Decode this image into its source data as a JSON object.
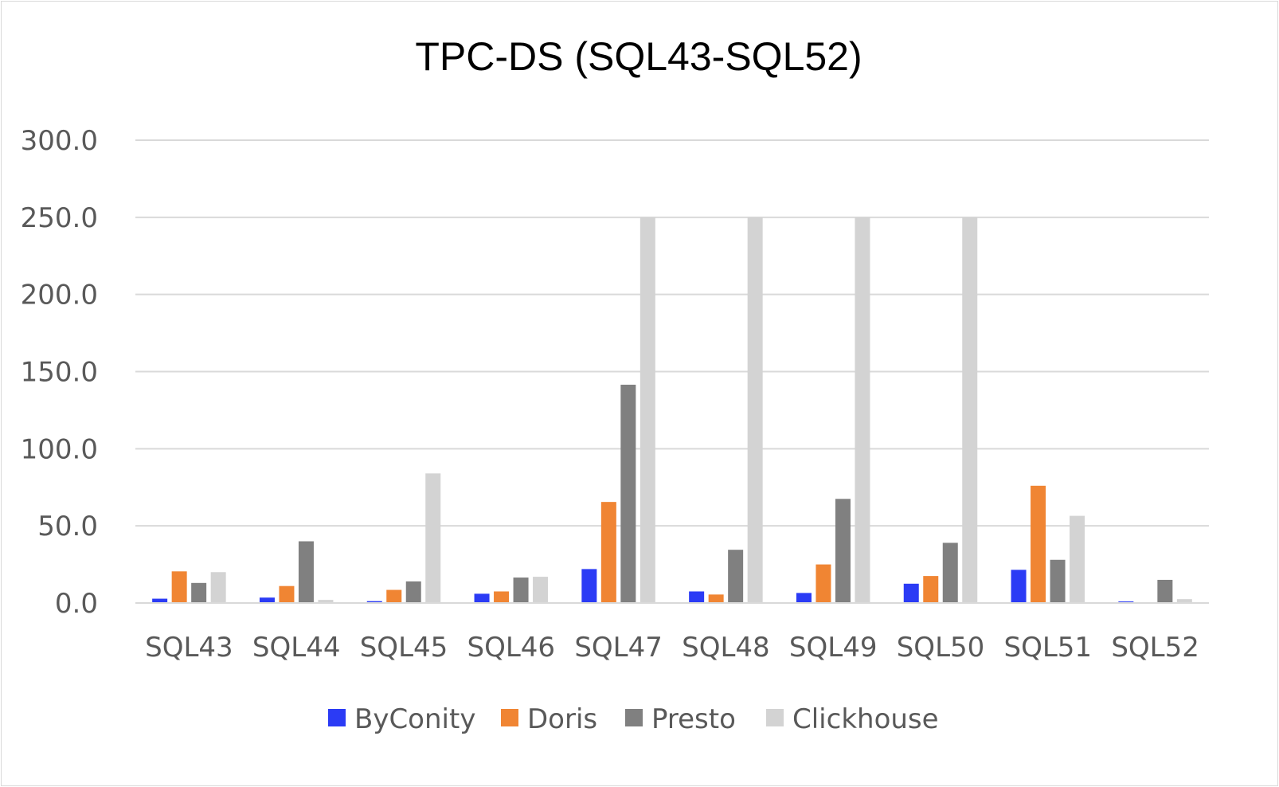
{
  "chart_data": {
    "type": "bar",
    "title": "TPC-DS (SQL43-SQL52)",
    "xlabel": "",
    "ylabel": "",
    "ylim": [
      0,
      300
    ],
    "y_ticks": [
      "0.0",
      "50.0",
      "100.0",
      "150.0",
      "200.0",
      "250.0",
      "300.0"
    ],
    "grid": true,
    "legend_position": "bottom",
    "categories": [
      "SQL43",
      "SQL44",
      "SQL45",
      "SQL46",
      "SQL47",
      "SQL48",
      "SQL49",
      "SQL50",
      "SQL51",
      "SQL52"
    ],
    "series": [
      {
        "name": "ByConity",
        "color": "#2b3bf5",
        "values": [
          2.8,
          3.5,
          1.2,
          6.0,
          22.0,
          7.5,
          6.5,
          12.5,
          21.5,
          1.0
        ]
      },
      {
        "name": "Doris",
        "color": "#f08533",
        "values": [
          20.5,
          11.0,
          8.5,
          7.5,
          65.5,
          5.5,
          25.0,
          17.5,
          76.0,
          0.5
        ]
      },
      {
        "name": "Presto",
        "color": "#808080",
        "values": [
          13.0,
          40.0,
          14.0,
          16.5,
          141.5,
          34.5,
          67.5,
          39.0,
          28.0,
          15.0
        ]
      },
      {
        "name": "Clickhouse",
        "color": "#d3d3d3",
        "values": [
          20.0,
          2.0,
          84.0,
          17.0,
          250.0,
          250.0,
          250.0,
          250.0,
          56.5,
          2.5
        ]
      }
    ]
  }
}
